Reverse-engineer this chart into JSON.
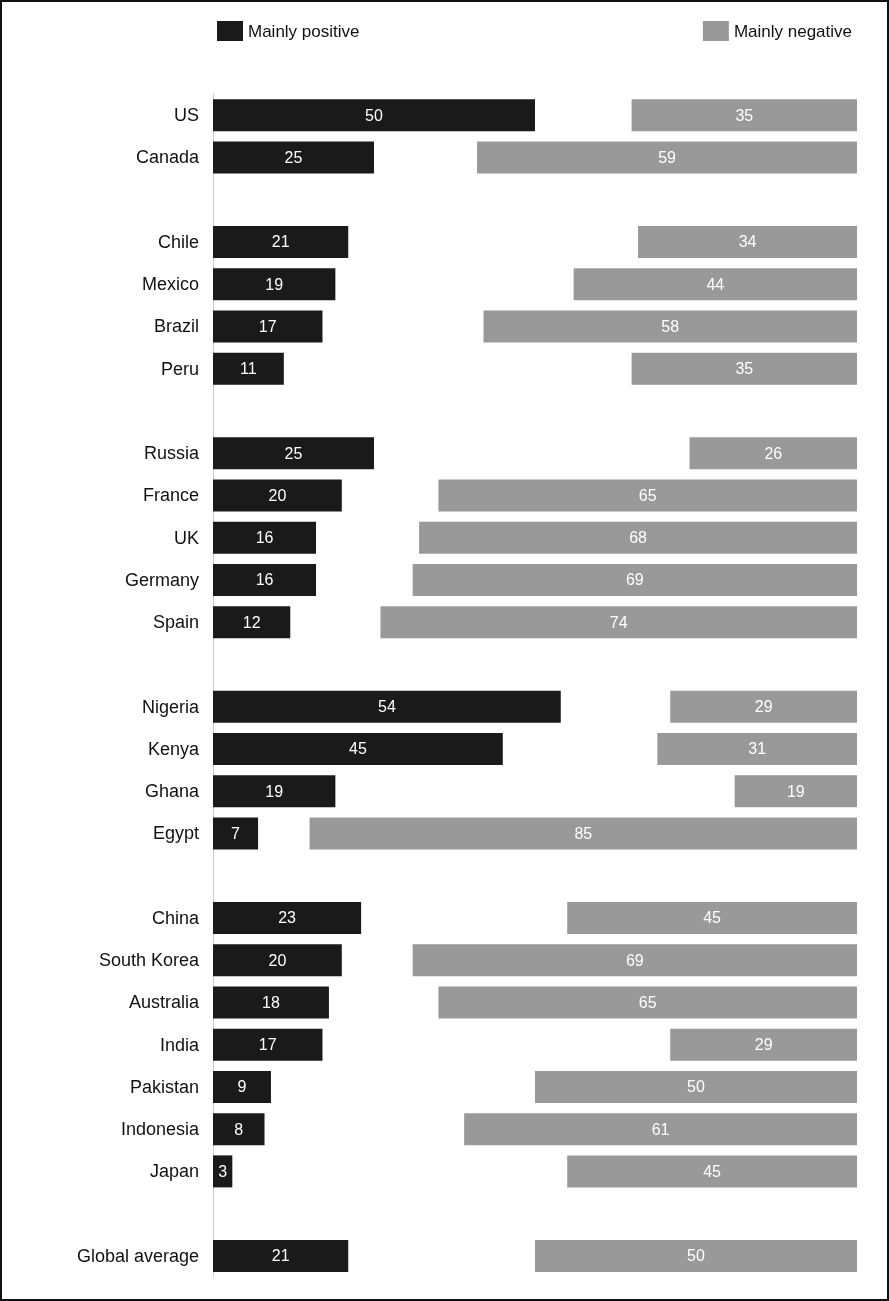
{
  "chart_data": [
    {
      "type": "bar",
      "orientation": "horizontal",
      "categories": [
        "US",
        "Canada",
        null,
        "Chile",
        "Mexico",
        "Brazil",
        "Peru",
        null,
        "Russia",
        "France",
        "UK",
        "Germany",
        "Spain",
        null,
        "Nigeria",
        "Kenya",
        "Ghana",
        "Egypt",
        null,
        "China",
        "South Korea",
        "Australia",
        "India",
        "Pakistan",
        "Indonesia",
        "Japan",
        null,
        "Global average"
      ],
      "series": [
        {
          "name": "Mainly positive",
          "color": "#1a1a1a",
          "values": [
            50,
            25,
            null,
            21,
            19,
            17,
            11,
            null,
            25,
            20,
            16,
            16,
            12,
            null,
            54,
            45,
            19,
            7,
            null,
            23,
            20,
            18,
            17,
            9,
            8,
            3,
            null,
            21
          ]
        }
      ],
      "xlim": [
        0,
        54
      ],
      "tick_labels": "y",
      "legend": "top left",
      "data_labels": true
    },
    {
      "type": "bar",
      "orientation": "horizontal",
      "categories": [
        null,
        null,
        null,
        null,
        null,
        null,
        null,
        null,
        null,
        null,
        null,
        null,
        null,
        null,
        null,
        null,
        null,
        null,
        null,
        null,
        null,
        null,
        null,
        null,
        null,
        null,
        null,
        null
      ],
      "series": [
        {
          "name": "Mainly negative",
          "color": "#999999",
          "values": [
            35,
            59,
            null,
            34,
            44,
            58,
            35,
            null,
            26,
            65,
            68,
            69,
            74,
            null,
            29,
            31,
            19,
            85,
            null,
            45,
            69,
            65,
            29,
            50,
            61,
            45,
            null,
            50
          ]
        }
      ],
      "xlim": [
        85,
        0
      ],
      "tick_labels": false,
      "legend": "top right",
      "data_labels": true
    }
  ]
}
